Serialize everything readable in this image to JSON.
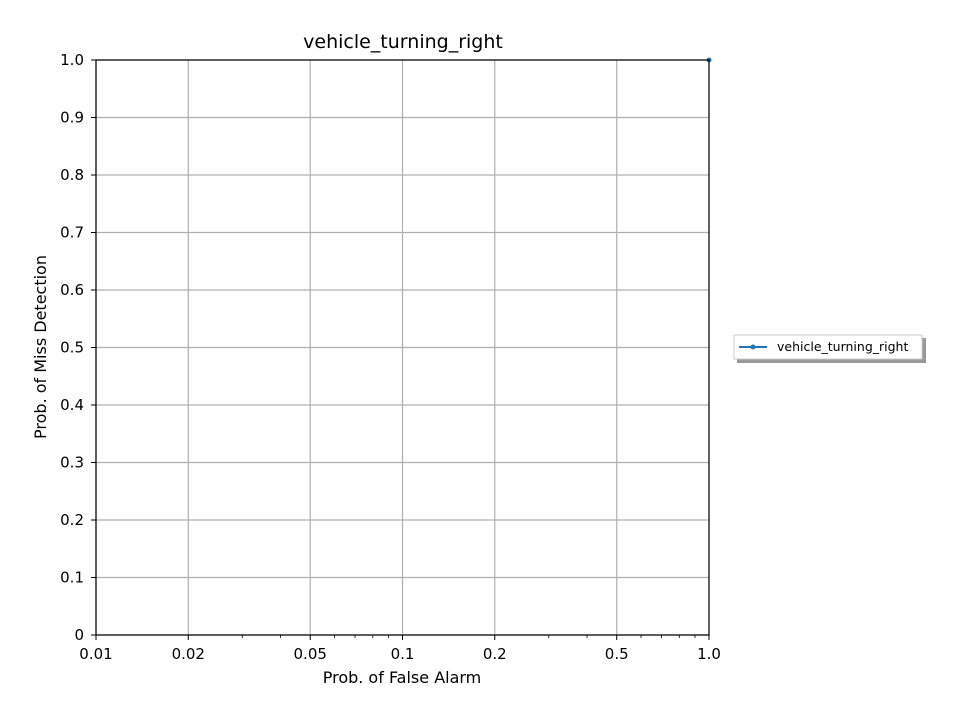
{
  "chart_data": {
    "type": "line",
    "title": "vehicle_turning_right",
    "xlabel": "Prob. of False Alarm",
    "ylabel": "Prob. of Miss Detection",
    "xscale": "log",
    "xlim": [
      0.01,
      1.0
    ],
    "ylim": [
      0,
      1.0
    ],
    "x_major_ticks": [
      0.01,
      0.02,
      0.05,
      0.1,
      0.2,
      0.5,
      1.0
    ],
    "x_tick_labels": [
      "0.01",
      "0.02",
      "0.05",
      "0.1",
      "0.2",
      "0.5",
      "1.0"
    ],
    "x_minor_ticks": [
      0.03,
      0.04,
      0.06,
      0.07,
      0.08,
      0.09,
      0.3,
      0.4,
      0.6,
      0.7,
      0.8,
      0.9
    ],
    "y_ticks": [
      0,
      0.1,
      0.2,
      0.3,
      0.4,
      0.5,
      0.6,
      0.7,
      0.8,
      0.9,
      1.0
    ],
    "y_tick_labels": [
      "0",
      "0.1",
      "0.2",
      "0.3",
      "0.4",
      "0.5",
      "0.6",
      "0.7",
      "0.8",
      "0.9",
      "1.0"
    ],
    "grid": true,
    "legend_position": "right, outside plot",
    "series": [
      {
        "name": "vehicle_turning_right",
        "color": "#1f77b4",
        "marker": "dot",
        "x": [
          1.0
        ],
        "y": [
          1.0
        ]
      }
    ]
  }
}
